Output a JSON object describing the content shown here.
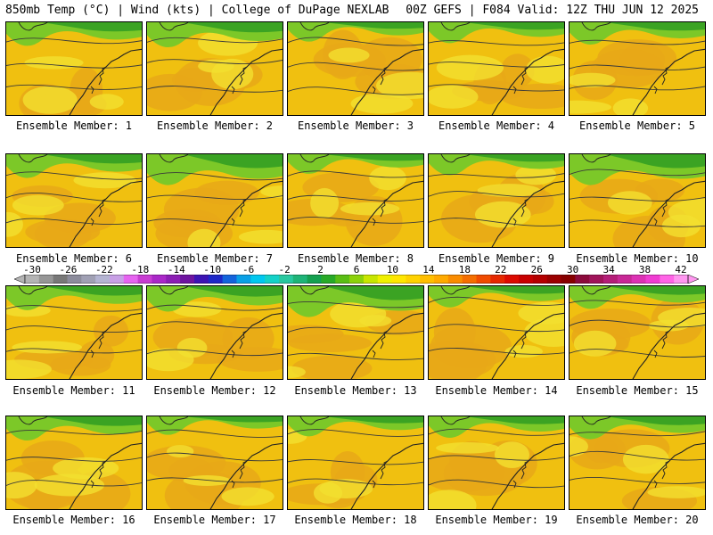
{
  "header": {
    "left": "850mb Temp (°C) | Wind (kts) | College of DuPage NEXLAB",
    "right": "00Z GEFS | F084 Valid: 12Z THU JUN 12 2025"
  },
  "panels": [
    {
      "label": "Ensemble Member: 1"
    },
    {
      "label": "Ensemble Member: 2"
    },
    {
      "label": "Ensemble Member: 3"
    },
    {
      "label": "Ensemble Member: 4"
    },
    {
      "label": "Ensemble Member: 5"
    },
    {
      "label": "Ensemble Member: 6"
    },
    {
      "label": "Ensemble Member: 7"
    },
    {
      "label": "Ensemble Member: 8"
    },
    {
      "label": "Ensemble Member: 9"
    },
    {
      "label": "Ensemble Member: 10"
    },
    {
      "label": "Ensemble Member: 11"
    },
    {
      "label": "Ensemble Member: 12"
    },
    {
      "label": "Ensemble Member: 13"
    },
    {
      "label": "Ensemble Member: 14"
    },
    {
      "label": "Ensemble Member: 15"
    },
    {
      "label": "Ensemble Member: 16"
    },
    {
      "label": "Ensemble Member: 17"
    },
    {
      "label": "Ensemble Member: 18"
    },
    {
      "label": "Ensemble Member: 19"
    },
    {
      "label": "Ensemble Member: 20"
    }
  ],
  "colorbar": {
    "ticks": [
      "-30",
      "-26",
      "-22",
      "-18",
      "-14",
      "-10",
      "-6",
      "-2",
      "2",
      "6",
      "10",
      "14",
      "18",
      "22",
      "26",
      "30",
      "34",
      "38",
      "42"
    ],
    "colors": [
      "#b4b4b4",
      "#969696",
      "#787878",
      "#8c8c9c",
      "#a0a0b4",
      "#b4b4d2",
      "#c8a0e6",
      "#e664f0",
      "#c83cd2",
      "#aa28c8",
      "#8c1eb4",
      "#6e14a0",
      "#3c14b4",
      "#1e28c8",
      "#1464dc",
      "#0aa0e6",
      "#00c8f0",
      "#14d2c8",
      "#28c8a0",
      "#1eb478",
      "#14a050",
      "#28aa28",
      "#5abe14",
      "#8cd20a",
      "#c8e600",
      "#f0f000",
      "#ffe600",
      "#ffd200",
      "#ffbe00",
      "#ffaa00",
      "#fa8c00",
      "#f56e00",
      "#f04b00",
      "#e62800",
      "#dc0a00",
      "#c80000",
      "#b40000",
      "#9b0000",
      "#870000",
      "#8c0a3c",
      "#a0145a",
      "#b41e78",
      "#c82896",
      "#dc32b4",
      "#f03cd2",
      "#ff64e6",
      "#ff96f0"
    ]
  },
  "colors": {
    "warm": "#f0c010",
    "orange": "#e8a818",
    "yellow": "#f2e030",
    "green": "#7cc828",
    "darkgreen": "#2a9a22"
  }
}
